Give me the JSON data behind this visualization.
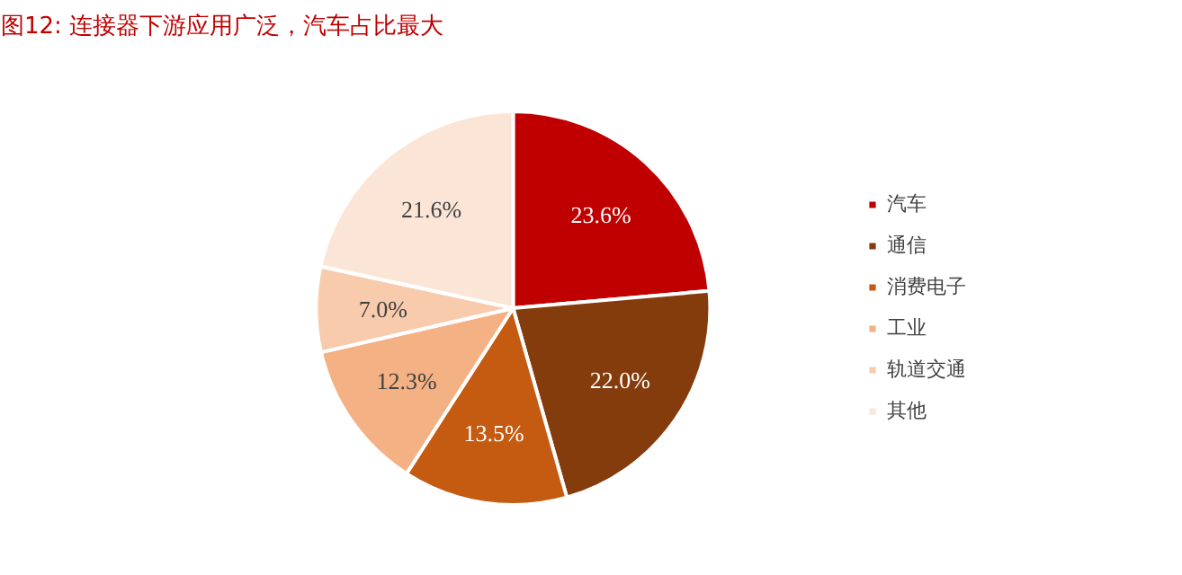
{
  "chart_data": {
    "type": "pie",
    "title": "图12:  连接器下游应用广泛，汽车占比最大",
    "categories": [
      "汽车",
      "通信",
      "消费电子",
      "工业",
      "轨道交通",
      "其他"
    ],
    "values": [
      23.6,
      22.0,
      13.5,
      12.3,
      7.0,
      21.6
    ],
    "colors": [
      "#c00000",
      "#843c0c",
      "#c55a11",
      "#f4b183",
      "#f8cbad",
      "#fbe5d6"
    ],
    "value_labels": [
      "23.6%",
      "22.0%",
      "13.5%",
      "12.3%",
      "7.0%",
      "21.6%"
    ],
    "legend": "right"
  }
}
